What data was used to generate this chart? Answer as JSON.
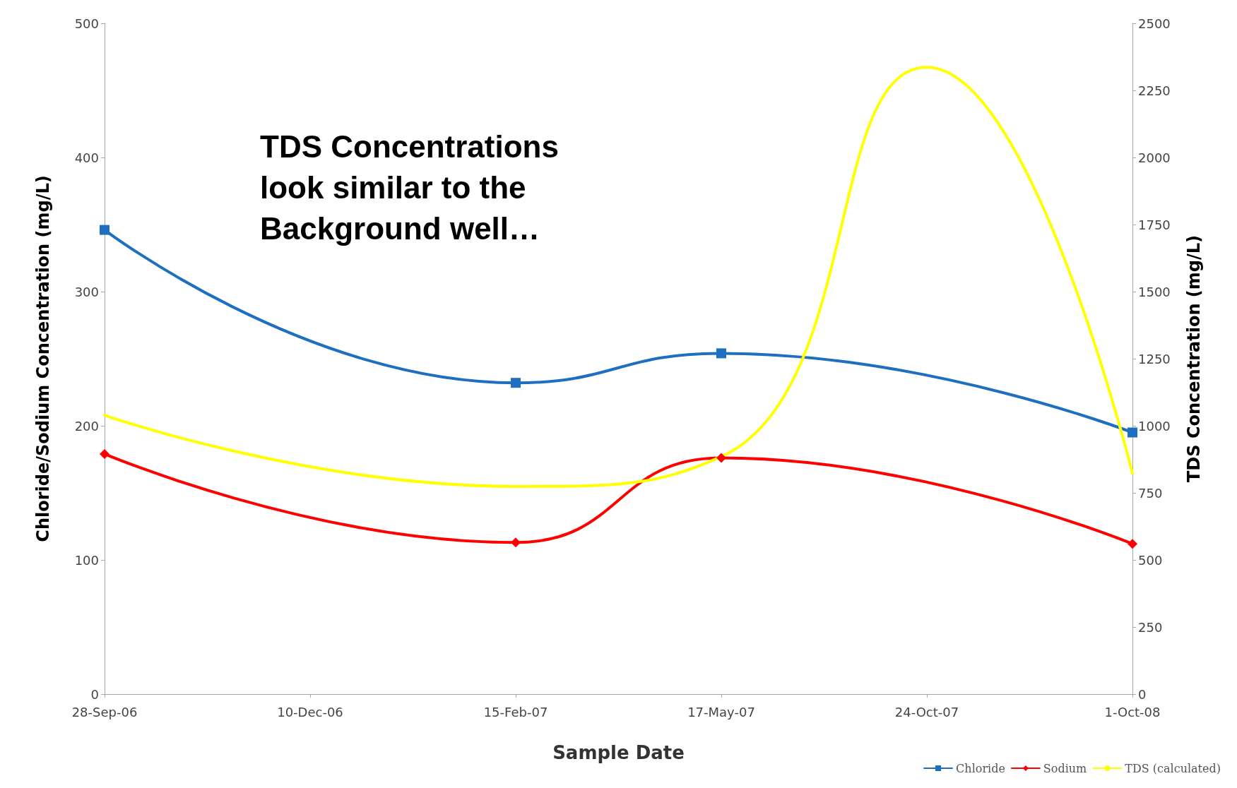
{
  "chart_data": {
    "type": "line",
    "xlabel": "Sample Date",
    "ylabel": "Chloride/Sodium Concentration (mg/L)",
    "y2label": "TDS Concentration (mg/L)",
    "categories": [
      "28-Sep-06",
      "10-Dec-06",
      "15-Feb-07",
      "17-May-07",
      "24-Oct-07",
      "1-Oct-08"
    ],
    "series": [
      {
        "name": "Chloride",
        "color": "#1f6fc0",
        "marker": "square",
        "values": [
          346,
          null,
          232,
          254,
          null,
          195
        ]
      },
      {
        "name": "Sodium",
        "color": "#ff0000",
        "marker": "diamond",
        "values": [
          179,
          null,
          113,
          176,
          null,
          112
        ]
      },
      {
        "name": "TDS (calculated)",
        "color": "#ffff00",
        "marker": "none",
        "axis": "y2",
        "values": [
          1039,
          null,
          774,
          885,
          2336,
          823
        ]
      }
    ],
    "ylim": [
      0,
      500
    ],
    "yticks": [
      0,
      100,
      200,
      300,
      400,
      500
    ],
    "y2lim": [
      0,
      2500
    ],
    "y2ticks": [
      0,
      250,
      500,
      750,
      1000,
      1250,
      1500,
      1750,
      2000,
      2250,
      2500
    ],
    "grid": false,
    "legend": "bottom right",
    "line_style": "solid",
    "annotations": [
      "TDS Concentrations look similar to the Background well…"
    ]
  }
}
